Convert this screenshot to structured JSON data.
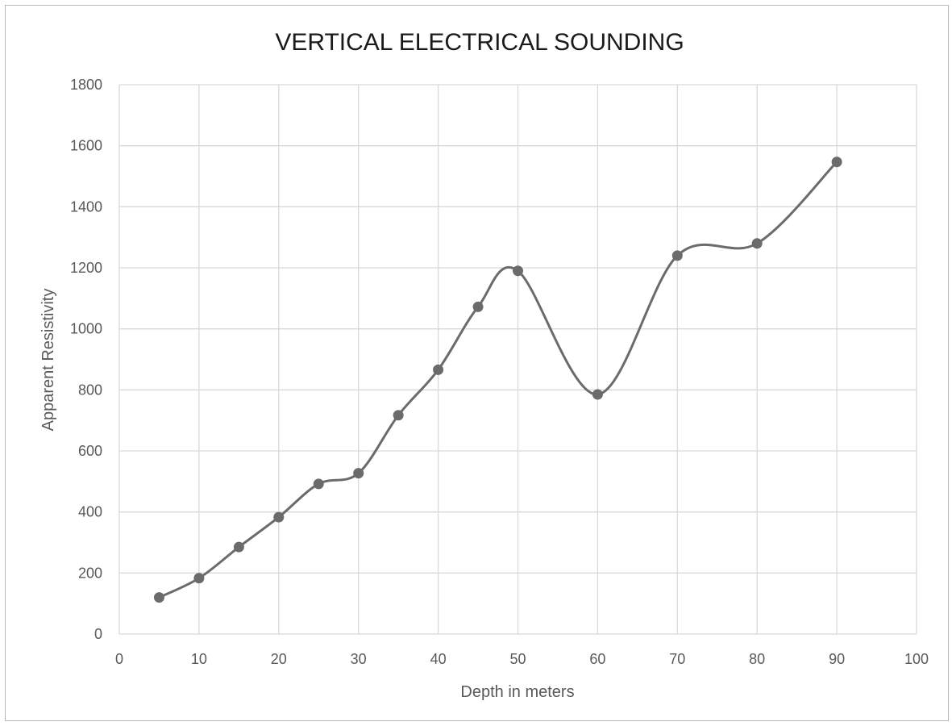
{
  "chart_data": {
    "type": "scatter",
    "title": "VERTICAL ELECTRICAL SOUNDING",
    "xlabel": "Depth in meters",
    "ylabel": "Apparent Resistivity",
    "xlim": [
      0,
      100
    ],
    "ylim": [
      0,
      1800
    ],
    "xticks": [
      0,
      10,
      20,
      30,
      40,
      50,
      60,
      70,
      80,
      90,
      100
    ],
    "yticks": [
      0,
      200,
      400,
      600,
      800,
      1000,
      1200,
      1400,
      1600,
      1800
    ],
    "grid": true,
    "smooth_line": true,
    "series": [
      {
        "color": "#6b6b6b",
        "points": [
          {
            "x": 5,
            "y": 120
          },
          {
            "x": 10,
            "y": 183
          },
          {
            "x": 15,
            "y": 285
          },
          {
            "x": 20,
            "y": 383
          },
          {
            "x": 25,
            "y": 492
          },
          {
            "x": 30,
            "y": 527
          },
          {
            "x": 35,
            "y": 717
          },
          {
            "x": 40,
            "y": 866
          },
          {
            "x": 45,
            "y": 1072
          },
          {
            "x": 50,
            "y": 1190
          },
          {
            "x": 60,
            "y": 785
          },
          {
            "x": 70,
            "y": 1240
          },
          {
            "x": 80,
            "y": 1280
          },
          {
            "x": 90,
            "y": 1547
          }
        ]
      }
    ]
  }
}
